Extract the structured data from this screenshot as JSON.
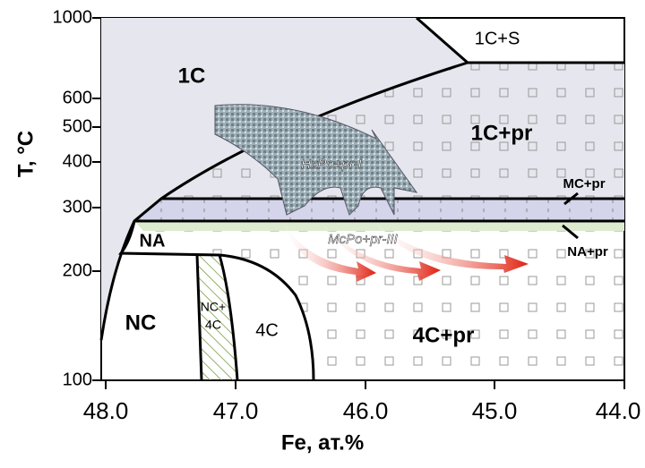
{
  "y_axis": {
    "label": "T, °C",
    "ticks": [
      "100",
      "200",
      "300",
      "400",
      "500",
      "600",
      "1000"
    ]
  },
  "x_axis": {
    "label": "Fe, ат.%",
    "ticks": [
      "48.0",
      "47.0",
      "46.0",
      "45.0",
      "44.0"
    ]
  },
  "regions": {
    "1c": "1C",
    "1c_s": "1C+S",
    "1c_pr": "1C+pr",
    "mc_pr": "MC+pr",
    "na_pr": "NA+pr",
    "na": "NA",
    "nc": "NC",
    "nc_4c": [
      "NC+",
      "4C"
    ],
    "4c": "4C",
    "4c_pr": "4C+pr"
  },
  "arrows": {
    "upper": "HxPo+pr-I",
    "lower": "McPo+pr-III"
  }
}
